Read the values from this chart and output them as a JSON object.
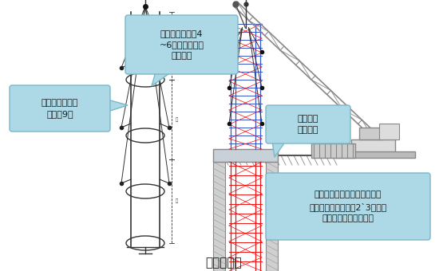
{
  "title": "吊点示意图",
  "title_fontsize": 11,
  "bg_color": "#ffffff",
  "annotation1": "每个钢筋笼设置4\n~6个起吊点（对\n称布置）",
  "annotation2": "分段制作成型，\n每段长9米",
  "annotation3": "焊接中用\n钢管支撑",
  "annotation4": "第一节钢筋笼放入桩孔，采用\n钢管支撑固定且留有2`3米高长\n度与下段钢筋笼焊接。",
  "callout_color": "#add8e6",
  "callout_edge": "#7ab8c8",
  "text_color": "#1a1a1a",
  "crane_color": "#888888",
  "rebar_red": "#ee1111",
  "rebar_blue": "#3355cc",
  "wire_color": "#333333",
  "line_color": "#333333",
  "hatch_color": "#aaaaaa",
  "ground_line": "#555555"
}
